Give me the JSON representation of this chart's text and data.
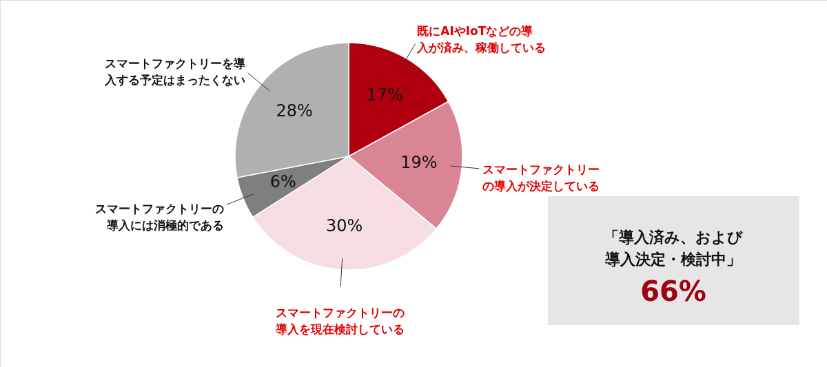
{
  "chart_data": {
    "type": "pie",
    "categories": [
      "既にAIやIoTなどの導入が済み、稼働している",
      "スマートファクトリーの導入が決定している",
      "スマートファクトリーの導入を現在検討している",
      "スマートファクトリーの導入には消極的である",
      "スマートファクトリーを導入する予定はまったくない"
    ],
    "values": [
      17,
      19,
      30,
      6,
      28
    ],
    "value_labels": [
      "17%",
      "19%",
      "30%",
      "6%",
      "28%"
    ],
    "colors": [
      "#b0000f",
      "#d98594",
      "#f5dde2",
      "#7f7f7f",
      "#b0b0b0"
    ],
    "annotations": [
      "「導入済み、および導入決定・検討中」",
      "66%"
    ]
  }
}
